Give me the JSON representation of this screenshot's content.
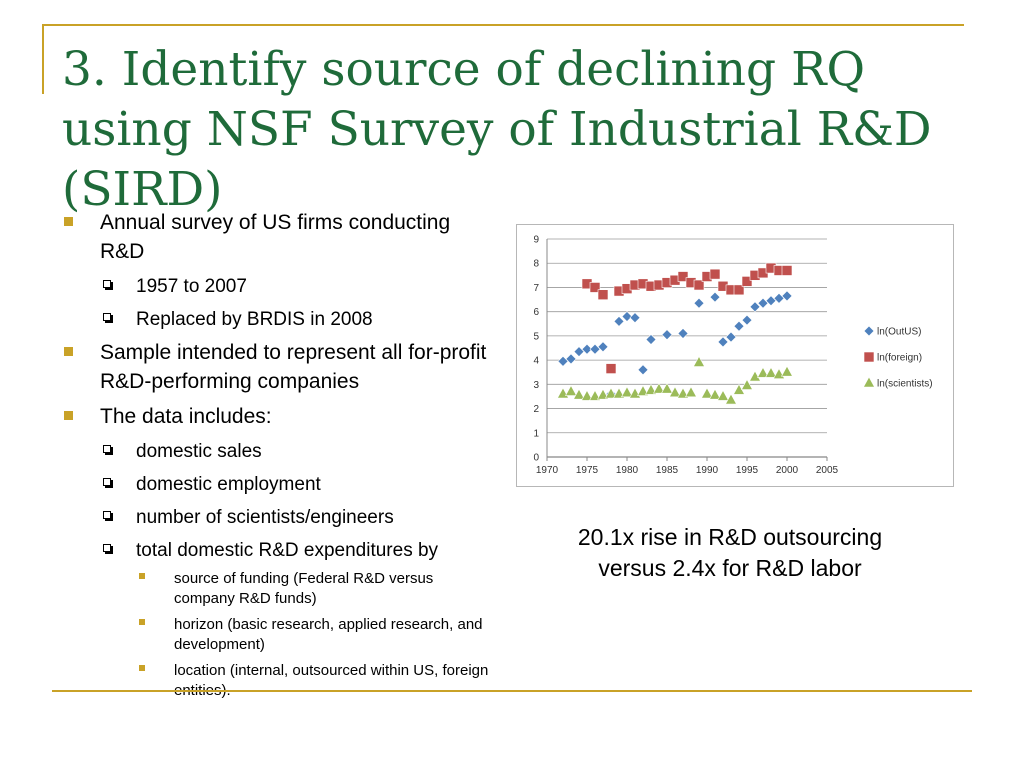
{
  "slide": {
    "title": "3. Identify source of declining RQ using NSF Survey of Industrial R&D (SIRD)",
    "bullets": [
      {
        "text": "Annual survey of US firms conducting R&D",
        "sub": [
          "1957 to 2007",
          "Replaced by BRDIS in 2008"
        ]
      },
      {
        "text": "Sample intended to represent all for-profit R&D-performing companies"
      },
      {
        "text": "The data includes:",
        "sub": [
          "domestic sales",
          "domestic employment",
          "number of scientists/engineers",
          "total domestic R&D expenditures by"
        ],
        "subsub": [
          "source of funding (Federal R&D versus company R&D funds)",
          "horizon (basic research, applied research, and development)",
          "location (internal, outsourced within US, foreign entities)."
        ]
      }
    ],
    "caption": [
      "20.1x rise in R&D outsourcing",
      "versus 2.4x for R&D labor"
    ]
  },
  "chart_data": {
    "type": "scatter",
    "title": "",
    "xlabel": "",
    "ylabel": "",
    "xlim": [
      1970,
      2005
    ],
    "ylim": [
      0,
      9
    ],
    "xticks": [
      1970,
      1975,
      1980,
      1985,
      1990,
      1995,
      2000,
      2005
    ],
    "yticks": [
      0,
      1,
      2,
      3,
      4,
      5,
      6,
      7,
      8,
      9
    ],
    "grid": "horizontal",
    "legend": "right",
    "series": [
      {
        "name": "ln(OutUS)",
        "color": "#4f81bd",
        "marker": "diamond",
        "x": [
          1972,
          1973,
          1974,
          1975,
          1976,
          1977,
          1978,
          1979,
          1980,
          1981,
          1982,
          1983,
          1985,
          1987,
          1989,
          1991,
          1992,
          1993,
          1994,
          1995,
          1996,
          1997,
          1998,
          1999,
          2000
        ],
        "y": [
          3.95,
          4.05,
          4.35,
          4.45,
          4.45,
          4.55,
          2.6,
          5.6,
          5.8,
          5.75,
          3.6,
          4.85,
          5.05,
          5.1,
          6.35,
          6.6,
          4.75,
          4.95,
          5.4,
          5.65,
          6.2,
          6.35,
          6.45,
          6.55,
          6.65
        ]
      },
      {
        "name": "ln(foreign)",
        "color": "#c0504d",
        "marker": "square",
        "x": [
          1975,
          1976,
          1977,
          1978,
          1979,
          1980,
          1981,
          1982,
          1983,
          1984,
          1985,
          1986,
          1987,
          1988,
          1989,
          1990,
          1991,
          1992,
          1993,
          1994,
          1995,
          1996,
          1997,
          1998,
          1999,
          2000
        ],
        "y": [
          7.15,
          7.0,
          6.7,
          3.65,
          6.85,
          6.95,
          7.1,
          7.15,
          7.05,
          7.1,
          7.2,
          7.3,
          7.45,
          7.2,
          7.1,
          7.45,
          7.55,
          7.05,
          6.9,
          6.9,
          7.25,
          7.5,
          7.6,
          7.8,
          7.7,
          7.7
        ]
      },
      {
        "name": "ln(scientists)",
        "color": "#9bbb59",
        "marker": "triangle",
        "x": [
          1972,
          1973,
          1974,
          1975,
          1976,
          1977,
          1978,
          1979,
          1980,
          1981,
          1982,
          1983,
          1984,
          1985,
          1986,
          1987,
          1988,
          1989,
          1990,
          1991,
          1992,
          1993,
          1994,
          1995,
          1996,
          1997,
          1998,
          1999,
          2000
        ],
        "y": [
          2.6,
          2.7,
          2.55,
          2.5,
          2.5,
          2.55,
          2.6,
          2.6,
          2.65,
          2.6,
          2.7,
          2.75,
          2.8,
          2.8,
          2.65,
          2.6,
          2.65,
          3.9,
          2.6,
          2.55,
          2.5,
          2.35,
          2.75,
          2.95,
          3.3,
          3.45,
          3.45,
          3.4,
          3.5
        ]
      }
    ]
  }
}
